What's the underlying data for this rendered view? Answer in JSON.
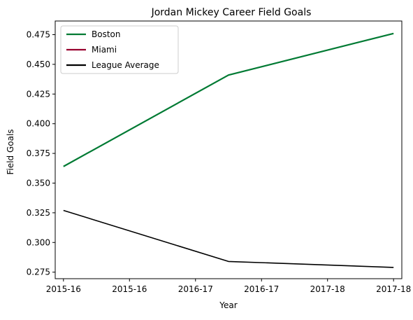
{
  "chart_data": {
    "type": "line",
    "title": "Jordan Mickey Career Field Goals",
    "xlabel": "Year",
    "ylabel": "Field Goals",
    "x": [
      0,
      1,
      2
    ],
    "xlim": [
      -0.05,
      2.05
    ],
    "xtick_positions": [
      0,
      0.4,
      0.8,
      1.2,
      1.6,
      2.0
    ],
    "xtick_labels": [
      "2015-16",
      "2015-16",
      "2016-17",
      "2016-17",
      "2017-18",
      "2017-18"
    ],
    "ylim": [
      0.2695,
      0.4865
    ],
    "yticks": [
      0.275,
      0.3,
      0.325,
      0.35,
      0.375,
      0.4,
      0.425,
      0.45,
      0.475
    ],
    "ytick_labels": [
      "0.275",
      "0.300",
      "0.325",
      "0.350",
      "0.375",
      "0.400",
      "0.425",
      "0.450",
      "0.475"
    ],
    "grid": false,
    "legend_position": "top-left",
    "series": [
      {
        "name": "Boston",
        "color": "#007A33",
        "values": [
          0.364,
          0.441,
          0.476
        ],
        "stroke": 2.2
      },
      {
        "name": "Miami",
        "color": "#98002E",
        "values": [
          null,
          null,
          null
        ],
        "stroke": 2.2
      },
      {
        "name": "League Average",
        "color": "#000000",
        "values": [
          0.327,
          0.284,
          0.279
        ],
        "stroke": 1.6
      }
    ]
  }
}
